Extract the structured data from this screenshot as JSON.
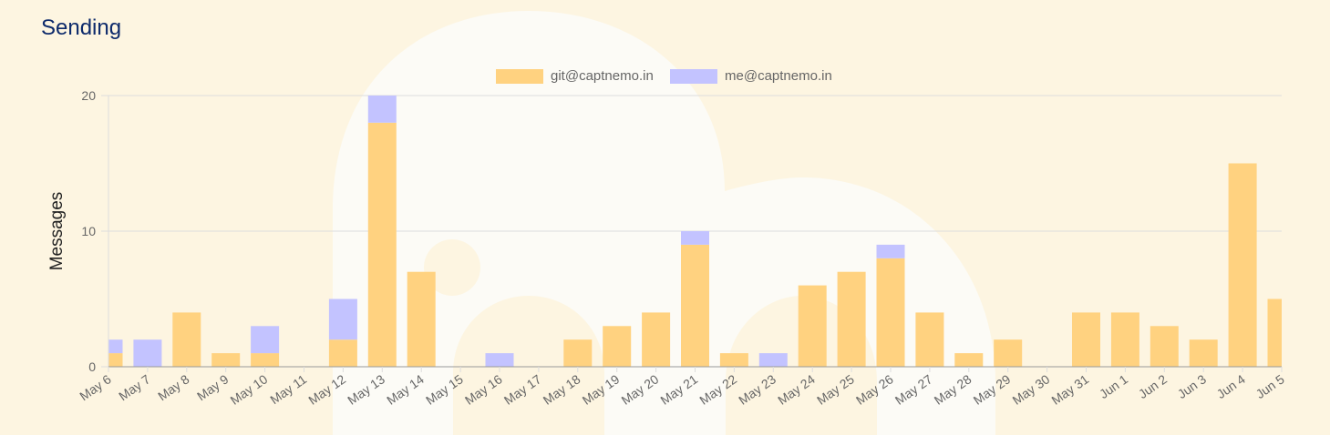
{
  "page": {
    "title": "Sending"
  },
  "colors": {
    "background": "#fdf5e1",
    "series_a": "#ffd280",
    "series_b": "#c3c3ff",
    "grid": "#dddddd",
    "axis": "#999999"
  },
  "chart_data": {
    "type": "bar",
    "stacked": true,
    "title": "",
    "xlabel": "",
    "ylabel": "Messages",
    "ylim": [
      0,
      20
    ],
    "yticks": [
      0,
      10,
      20
    ],
    "grid": true,
    "legend": "top-center",
    "categories": [
      "May 6",
      "May 7",
      "May 8",
      "May 9",
      "May 10",
      "May 11",
      "May 12",
      "May 13",
      "May 14",
      "May 15",
      "May 16",
      "May 17",
      "May 18",
      "May 19",
      "May 20",
      "May 21",
      "May 22",
      "May 23",
      "May 24",
      "May 25",
      "May 26",
      "May 27",
      "May 28",
      "May 29",
      "May 30",
      "May 31",
      "Jun 1",
      "Jun 2",
      "Jun 3",
      "Jun 4",
      "Jun 5"
    ],
    "series": [
      {
        "name": "git@captnemo.in",
        "color": "#ffd280",
        "values": [
          1,
          0,
          4,
          1,
          1,
          0,
          2,
          18,
          7,
          0,
          0,
          0,
          2,
          3,
          4,
          9,
          1,
          0,
          6,
          7,
          8,
          4,
          1,
          2,
          0,
          4,
          4,
          3,
          2,
          15,
          5
        ]
      },
      {
        "name": "me@captnemo.in",
        "color": "#c3c3ff",
        "values": [
          1,
          2,
          0,
          0,
          2,
          0,
          3,
          2,
          0,
          0,
          1,
          0,
          0,
          0,
          0,
          1,
          0,
          1,
          0,
          0,
          1,
          0,
          0,
          0,
          0,
          0,
          0,
          0,
          0,
          0,
          0
        ]
      }
    ]
  }
}
